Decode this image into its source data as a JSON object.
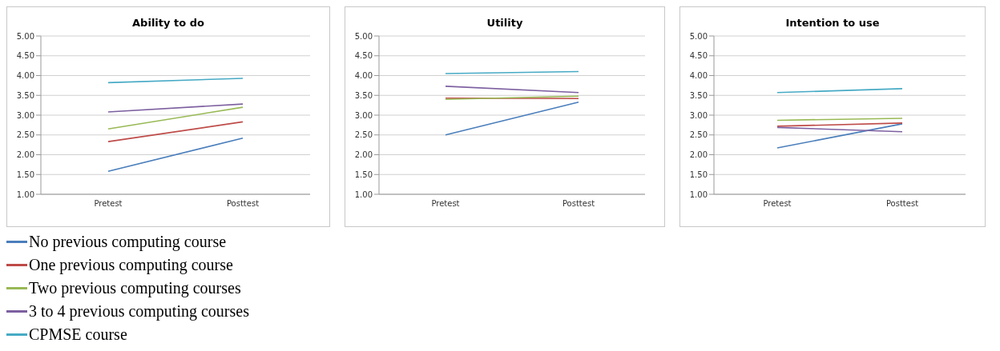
{
  "chart_data": [
    {
      "type": "line",
      "title": "Ability to do",
      "categories": [
        "Pretest",
        "Posttest"
      ],
      "series": [
        {
          "name": "No previous computing course",
          "color": "#4a7ebb",
          "values": [
            1.58,
            2.42
          ]
        },
        {
          "name": "One previous computing course",
          "color": "#be4b48",
          "values": [
            2.33,
            2.83
          ]
        },
        {
          "name": "Two previous computing courses",
          "color": "#98b954",
          "values": [
            2.65,
            3.2
          ]
        },
        {
          "name": "3 to 4 previous computing courses",
          "color": "#7d60a0",
          "values": [
            3.08,
            3.28
          ]
        },
        {
          "name": "CPMSE course",
          "color": "#46aac5",
          "values": [
            3.82,
            3.93
          ]
        }
      ],
      "ylim": [
        1,
        5
      ],
      "yticks": [
        {
          "value": 1,
          "label": "1.00"
        },
        {
          "value": 1.5,
          "label": "1.50"
        },
        {
          "value": 2,
          "label": "2.00"
        },
        {
          "value": 2.5,
          "label": "2.50"
        },
        {
          "value": 3,
          "label": "3.00"
        },
        {
          "value": 3.5,
          "label": "3.50"
        },
        {
          "value": 4,
          "label": "4.00"
        },
        {
          "value": 4.5,
          "label": "4.50"
        },
        {
          "value": 5,
          "label": "5.00"
        }
      ],
      "grid": "y",
      "legend": "bottom",
      "marker": "none"
    },
    {
      "type": "line",
      "title": "Utility",
      "categories": [
        "Pretest",
        "Posttest"
      ],
      "series": [
        {
          "color": "#4a7ebb",
          "values": [
            2.5,
            3.33
          ]
        },
        {
          "color": "#be4b48",
          "values": [
            3.43,
            3.42
          ]
        },
        {
          "color": "#98b954",
          "values": [
            3.4,
            3.48
          ]
        },
        {
          "color": "#7d60a0",
          "values": [
            3.73,
            3.57
          ]
        },
        {
          "color": "#46aac5",
          "values": [
            4.05,
            4.1
          ]
        }
      ],
      "ylim": [
        1,
        5
      ],
      "yticks": [
        {
          "value": 1,
          "label": "1.00"
        },
        {
          "value": 1.5,
          "label": "1.50"
        },
        {
          "value": 2,
          "label": "2.00"
        },
        {
          "value": 2.5,
          "label": "2.50"
        },
        {
          "value": 3,
          "label": "3.00"
        },
        {
          "value": 3.5,
          "label": "3.50"
        },
        {
          "value": 4,
          "label": "4.00"
        },
        {
          "value": 4.5,
          "label": "4.50"
        },
        {
          "value": 5,
          "label": "5.00"
        }
      ],
      "grid": "y",
      "marker": "none"
    },
    {
      "type": "line",
      "title": "Intention to use",
      "categories": [
        "Pretest",
        "Posttest"
      ],
      "series": [
        {
          "color": "#4a7ebb",
          "values": [
            2.17,
            2.78
          ]
        },
        {
          "color": "#be4b48",
          "values": [
            2.72,
            2.8
          ]
        },
        {
          "color": "#98b954",
          "values": [
            2.87,
            2.92
          ]
        },
        {
          "color": "#7d60a0",
          "values": [
            2.69,
            2.58
          ]
        },
        {
          "color": "#46aac5",
          "values": [
            3.57,
            3.67
          ]
        }
      ],
      "ylim": [
        1,
        5
      ],
      "yticks": [
        {
          "value": 1,
          "label": "1.00"
        },
        {
          "value": 1.5,
          "label": "1.50"
        },
        {
          "value": 2,
          "label": "2.00"
        },
        {
          "value": 2.5,
          "label": "2.50"
        },
        {
          "value": 3,
          "label": "3.00"
        },
        {
          "value": 3.5,
          "label": "3.50"
        },
        {
          "value": 4,
          "label": "4.00"
        },
        {
          "value": 4.5,
          "label": "4.50"
        },
        {
          "value": 5,
          "label": "5.00"
        }
      ],
      "grid": "y",
      "marker": "none"
    }
  ]
}
